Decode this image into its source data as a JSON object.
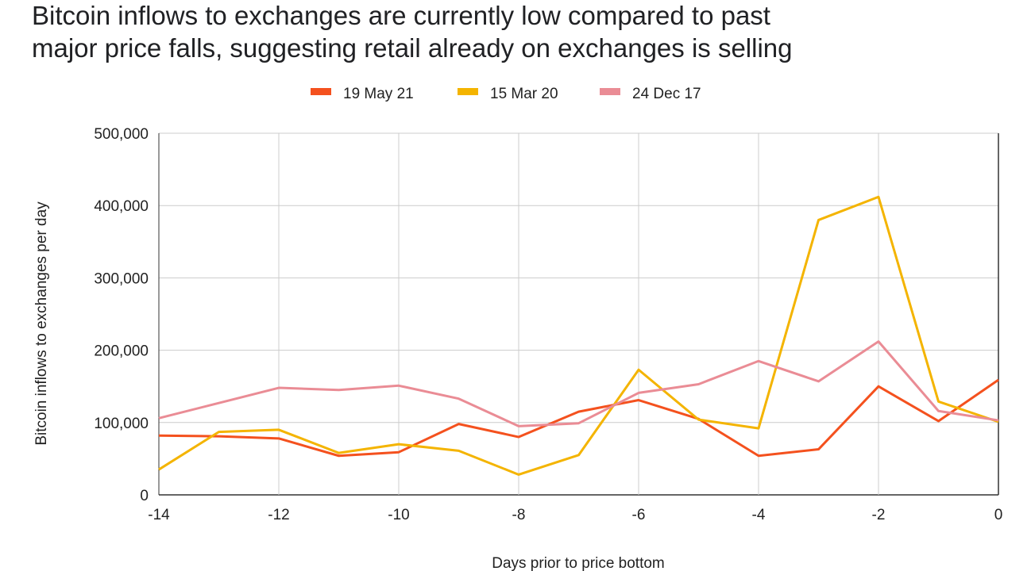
{
  "chart_data": {
    "type": "line",
    "title_lines": [
      "Bitcoin inflows to exchanges are currently low compared to past",
      "major price falls, suggesting retail already on exchanges is selling"
    ],
    "xlabel": "Days prior to price bottom",
    "ylabel": "Bitcoin inflows to exchanges per day",
    "xlim": [
      -14,
      0
    ],
    "ylim": [
      0,
      500000
    ],
    "x_ticks": [
      "-14",
      "-12",
      "-10",
      "-8",
      "-6",
      "-4",
      "-2",
      "0"
    ],
    "y_ticks": [
      "0",
      "100,000",
      "200,000",
      "300,000",
      "400,000",
      "500,000"
    ],
    "grid": true,
    "legend_position": "top",
    "x": [
      -14,
      -13,
      -12,
      -11,
      -10,
      -9,
      -8,
      -7,
      -6,
      -5,
      -4,
      -3,
      -2,
      -1,
      0
    ],
    "series": [
      {
        "name": "19 May 21",
        "color": "#f4511e",
        "values": [
          82000,
          81000,
          78000,
          54000,
          59000,
          98000,
          80000,
          115000,
          131000,
          105000,
          54000,
          63000,
          150000,
          102000,
          159000
        ]
      },
      {
        "name": "15 Mar 20",
        "color": "#f4b400",
        "values": [
          35000,
          87000,
          90000,
          58000,
          70000,
          61000,
          28000,
          55000,
          173000,
          104000,
          92000,
          380000,
          412000,
          129000,
          101000
        ]
      },
      {
        "name": "24 Dec 17",
        "color": "#ea8c95",
        "values": [
          106000,
          127000,
          148000,
          145000,
          151000,
          133000,
          95000,
          99000,
          141000,
          153000,
          185000,
          157000,
          212000,
          116000,
          103000
        ]
      }
    ]
  }
}
